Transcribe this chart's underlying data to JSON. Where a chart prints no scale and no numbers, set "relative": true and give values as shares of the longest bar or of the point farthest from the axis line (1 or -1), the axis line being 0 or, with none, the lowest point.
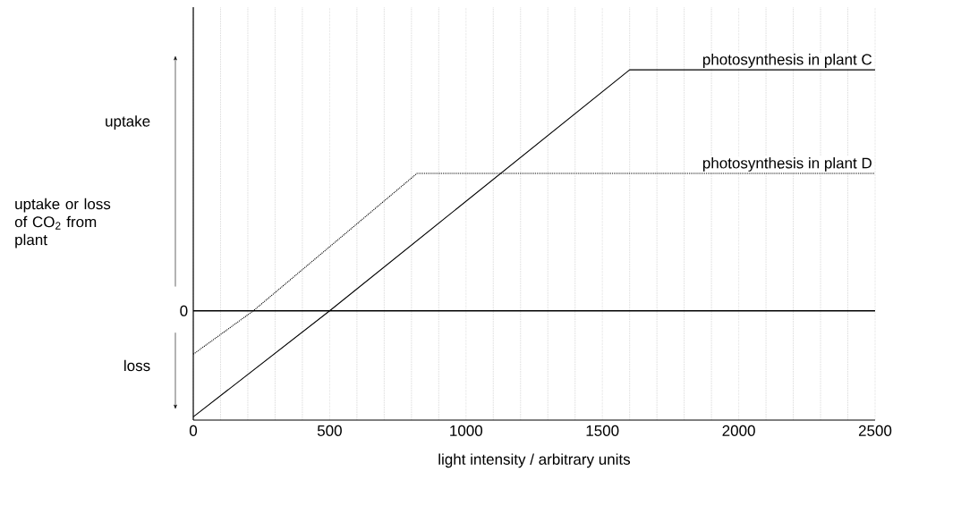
{
  "chart_data": {
    "type": "line",
    "xlabel": "light intensity / arbitrary units",
    "ylabel": "uptake or loss of CO$_{2}$ from plant",
    "relative": true,
    "xlim": [
      0,
      2500
    ],
    "xticks": [
      0,
      500,
      1000,
      1500,
      2000,
      2500
    ],
    "grid": "x",
    "legend": false,
    "marker": "none",
    "series": [
      {
        "name": "photosynthesis in plant C",
        "color": "#000000",
        "line_style": "solid",
        "x": [
          0,
          500,
          1600,
          2500
        ],
        "values": [
          -0.44,
          0,
          1,
          1
        ]
      },
      {
        "name": "photosynthesis in plant D",
        "color": "#000000",
        "line_style": "dotted",
        "x": [
          0,
          220,
          820,
          2500
        ],
        "values": [
          -0.18,
          0,
          0.57,
          0.57
        ]
      }
    ],
    "ref_lines": [
      {
        "axis": "y",
        "value": 0,
        "label": "0",
        "color": "#000000",
        "line_style": "solid"
      }
    ],
    "annotations": [
      "uptake",
      "loss"
    ]
  }
}
